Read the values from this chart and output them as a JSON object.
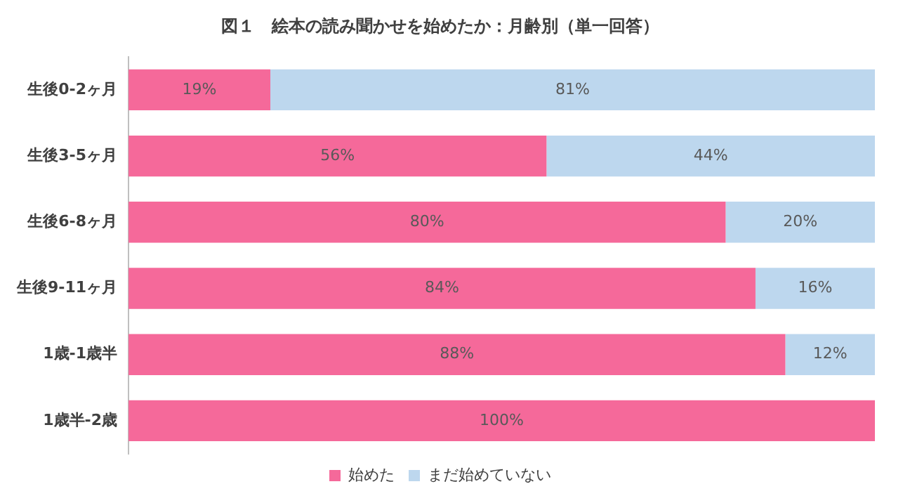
{
  "chart_data": {
    "type": "bar",
    "title": "図１　絵本の読み聞かせを始めたか：月齢別（単一回答）",
    "orientation": "horizontal",
    "stacked": true,
    "categories": [
      "生後0-2ヶ月",
      "生後3-5ヶ月",
      "生後6-8ヶ月",
      "生後9-11ヶ月",
      "1歳-1歳半",
      "1歳半-2歳"
    ],
    "series": [
      {
        "name": "始めた",
        "color": "#f5699a",
        "values": [
          19,
          56,
          80,
          84,
          88,
          100
        ],
        "value_labels": [
          "19%",
          "56%",
          "80%",
          "84%",
          "88%",
          "100%"
        ]
      },
      {
        "name": "まだ始めていない",
        "color": "#bdd7ee",
        "values": [
          81,
          44,
          20,
          16,
          12,
          0
        ],
        "value_labels": [
          "81%",
          "44%",
          "20%",
          "16%",
          "12%",
          null
        ]
      }
    ],
    "xlim": [
      0,
      100
    ],
    "tick_labels": "y",
    "legend": "bottom"
  }
}
